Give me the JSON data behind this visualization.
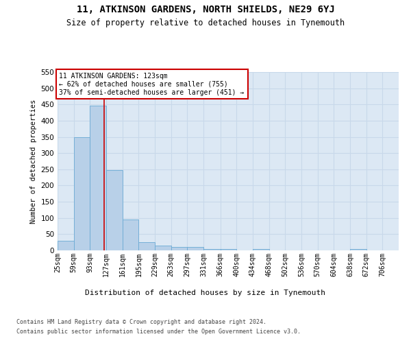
{
  "title": "11, ATKINSON GARDENS, NORTH SHIELDS, NE29 6YJ",
  "subtitle": "Size of property relative to detached houses in Tynemouth",
  "xlabel": "Distribution of detached houses by size in Tynemouth",
  "ylabel": "Number of detached properties",
  "bar_heights": [
    30,
    350,
    447,
    247,
    95,
    25,
    15,
    10,
    10,
    5,
    5,
    0,
    5,
    0,
    0,
    0,
    0,
    0,
    5,
    0,
    0
  ],
  "bin_edges": [
    25,
    59,
    93,
    127,
    161,
    195,
    229,
    263,
    297,
    331,
    366,
    400,
    434,
    468,
    502,
    536,
    570,
    604,
    638,
    672,
    706,
    740
  ],
  "tick_labels": [
    "25sqm",
    "59sqm",
    "93sqm",
    "127sqm",
    "161sqm",
    "195sqm",
    "229sqm",
    "263sqm",
    "297sqm",
    "331sqm",
    "366sqm",
    "400sqm",
    "434sqm",
    "468sqm",
    "502sqm",
    "536sqm",
    "570sqm",
    "604sqm",
    "638sqm",
    "672sqm",
    "706sqm"
  ],
  "bar_color": "#b8d0e8",
  "bar_edge_color": "#6aaad4",
  "grid_color": "#c8d8ea",
  "background_color": "#dce8f4",
  "vline_x": 123,
  "vline_color": "#cc0000",
  "annotation_text": "11 ATKINSON GARDENS: 123sqm\n← 62% of detached houses are smaller (755)\n37% of semi-detached houses are larger (451) →",
  "annotation_box_color": "#ffffff",
  "annotation_box_edge": "#cc0000",
  "ylim": [
    0,
    550
  ],
  "yticks": [
    0,
    50,
    100,
    150,
    200,
    250,
    300,
    350,
    400,
    450,
    500,
    550
  ],
  "footer_line1": "Contains HM Land Registry data © Crown copyright and database right 2024.",
  "footer_line2": "Contains public sector information licensed under the Open Government Licence v3.0."
}
